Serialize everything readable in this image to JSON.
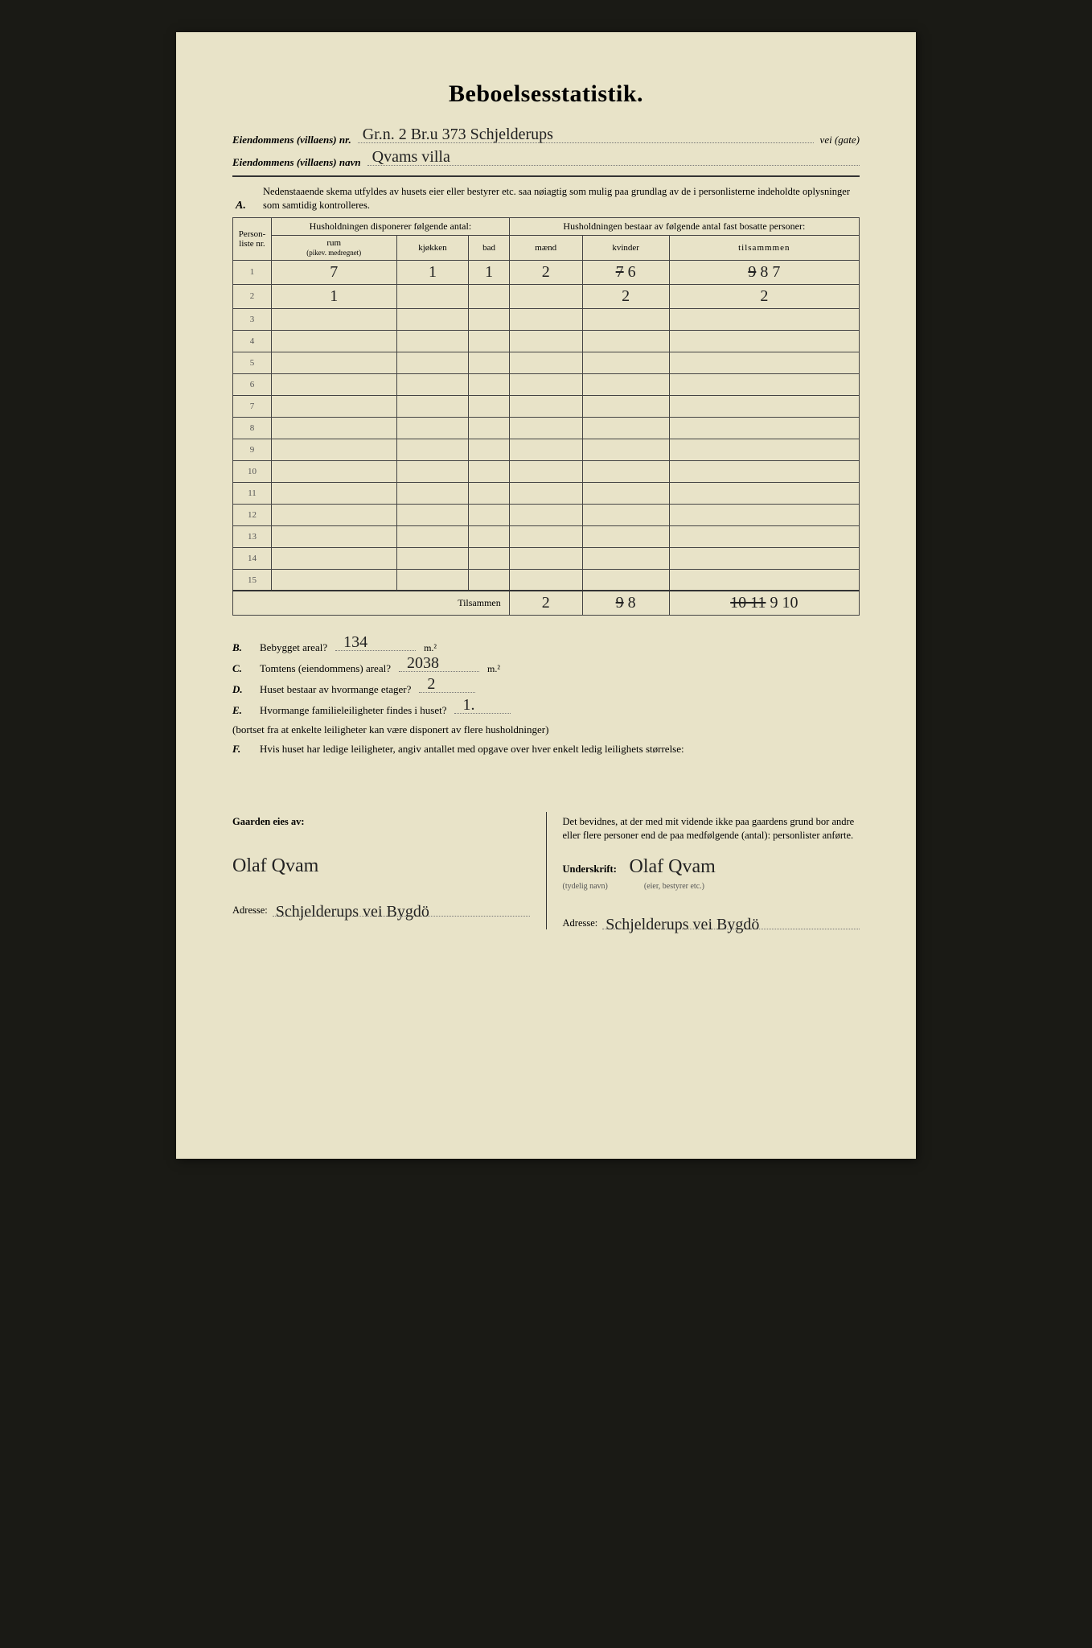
{
  "title": "Beboelsesstatistik.",
  "header": {
    "line1_label": "Eiendommens (villaens) nr.",
    "line1_value": "Gr.n. 2  Br.u 373  Schjelderups",
    "line1_suffix": "vei (gate)",
    "line2_label": "Eiendommens (villaens) navn",
    "line2_value": "Qvams  villa"
  },
  "sectionA": {
    "letter": "A.",
    "note": "Nedenstaaende skema utfyldes av husets eier eller bestyrer etc. saa nøiagtig som mulig paa grundlag av de i personlisterne indeholdte oplysninger som samtidig kontrolleres."
  },
  "table": {
    "col_personliste": "Person-liste nr.",
    "group1": "Husholdningen disponerer følgende antal:",
    "group2": "Husholdningen bestaar av følgende antal fast bosatte personer:",
    "col_rum": "rum",
    "col_rum_sub": "(pikev. medregnet)",
    "col_kjokken": "kjøkken",
    "col_bad": "bad",
    "col_maend": "mænd",
    "col_kvinder": "kvinder",
    "col_tilsammen": "tilsammmen",
    "rows": [
      {
        "n": "1",
        "rum": "7",
        "kj": "1",
        "bad": "1",
        "m": "2",
        "k": "6",
        "k_strike": "7",
        "t": "8",
        "t_strike": "9",
        "t_extra": "7"
      },
      {
        "n": "2",
        "rum": "1",
        "kj": "",
        "bad": "",
        "m": "",
        "k": "2",
        "t": "2"
      },
      {
        "n": "3"
      },
      {
        "n": "4"
      },
      {
        "n": "5"
      },
      {
        "n": "6"
      },
      {
        "n": "7"
      },
      {
        "n": "8"
      },
      {
        "n": "9"
      },
      {
        "n": "10"
      },
      {
        "n": "11"
      },
      {
        "n": "12"
      },
      {
        "n": "13"
      },
      {
        "n": "14"
      },
      {
        "n": "15"
      }
    ],
    "totals_label": "Tilsammen",
    "totals": {
      "m": "2",
      "k": "8",
      "k_strike": "9",
      "t": "9 10",
      "t_strike": "10 11"
    }
  },
  "letters": {
    "B": {
      "L": "B.",
      "txt": "Bebygget areal?",
      "val": "134",
      "unit": "m.²"
    },
    "C": {
      "L": "C.",
      "txt": "Tomtens (eiendommens) areal?",
      "val": "2038",
      "unit": "m.²"
    },
    "D": {
      "L": "D.",
      "txt": "Huset bestaar av hvormange etager?",
      "val": "2"
    },
    "E": {
      "L": "E.",
      "txt": "Hvormange familieleiligheter findes i huset?",
      "val": "1.",
      "small": "(bortset fra at enkelte leiligheter kan være disponert av flere husholdninger)"
    },
    "F": {
      "L": "F.",
      "txt": "Hvis huset har ledige leiligheter, angiv antallet med opgave over hver enkelt ledig leilighets størrelse:"
    }
  },
  "bottom": {
    "left_label": "Gaarden eies av:",
    "owner": "Olaf Qvam",
    "addr_label": "Adresse:",
    "addr_left": "Schjelderups vei  Bygdö",
    "right_text": "Det bevidnes, at der med mit vidende ikke paa gaardens grund bor andre eller flere personer end de paa medfølgende (antal):                  personlister anførte.",
    "sig_label": "Underskrift:",
    "sig_sub": "(tydelig navn)",
    "sig_sub2": "(eier, bestyrer etc.)",
    "sig": "Olaf Qvam",
    "addr_right": "Schjelderups vei  Bygdö"
  },
  "colors": {
    "paper": "#e8e3c8",
    "ink": "#222",
    "rule": "#333"
  }
}
